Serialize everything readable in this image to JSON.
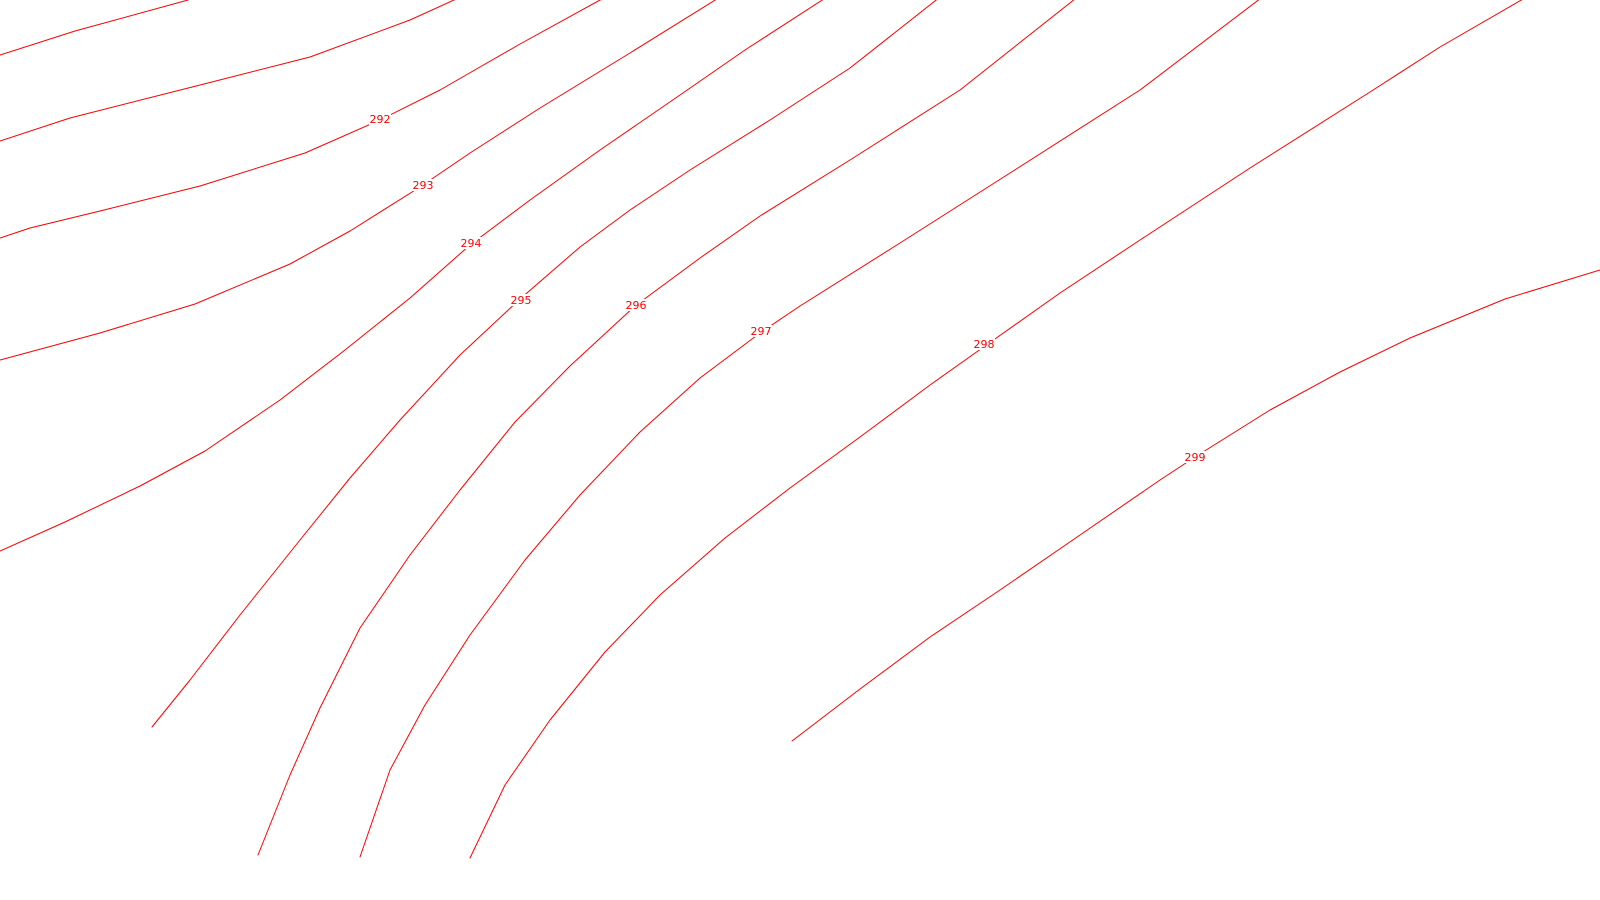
{
  "map": {
    "line_color": "#ff0000",
    "background_color": "#ffffff",
    "contours": [
      {
        "id": "contour-unlabeled-a",
        "label": ""
      },
      {
        "id": "contour-292",
        "label": "292"
      },
      {
        "id": "contour-293",
        "label": "293"
      },
      {
        "id": "contour-294",
        "label": "294"
      },
      {
        "id": "contour-295",
        "label": "295"
      },
      {
        "id": "contour-296",
        "label": "296"
      },
      {
        "id": "contour-297",
        "label": "297"
      },
      {
        "id": "contour-298",
        "label": "298"
      },
      {
        "id": "contour-299",
        "label": "299"
      }
    ]
  }
}
